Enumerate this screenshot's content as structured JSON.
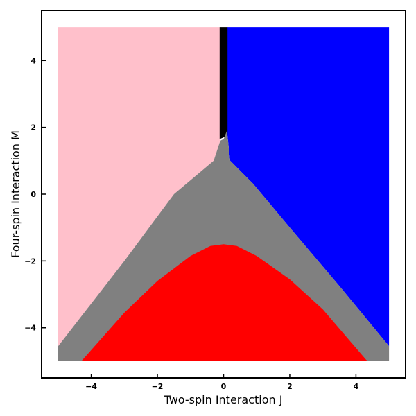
{
  "chart_data": {
    "type": "heatmap",
    "title": "",
    "xlabel": "Two-spin Interaction J",
    "ylabel": "Four-spin Interaction M",
    "xlim": [
      -5.5,
      5.5
    ],
    "ylim": [
      -5.5,
      5.5
    ],
    "data_extent": {
      "x": [
        -5,
        5
      ],
      "y": [
        -5,
        5
      ]
    },
    "x_ticks": [
      -4,
      -2,
      0,
      2,
      4
    ],
    "y_ticks": [
      -4,
      -2,
      0,
      2,
      4
    ],
    "tick_labels": {
      "x": [
        "−4",
        "−2",
        "0",
        "2",
        "4"
      ],
      "y": [
        "−4",
        "−2",
        "0",
        "2",
        "4"
      ]
    },
    "grid": false,
    "legend": "none",
    "regions": [
      {
        "color": "#ffc0cb",
        "points": [
          [
            -5,
            5
          ],
          [
            -0.1,
            5
          ],
          [
            -0.1,
            1.6
          ],
          [
            -0.3,
            1.0
          ],
          [
            -1.5,
            0.0
          ],
          [
            -3.0,
            -2.0
          ],
          [
            -5,
            -4.55
          ]
        ]
      },
      {
        "color": "#0000ff",
        "points": [
          [
            0.1,
            5
          ],
          [
            5,
            5
          ],
          [
            5,
            -4.55
          ],
          [
            3.5,
            -2.75
          ],
          [
            2.0,
            -1.0
          ],
          [
            0.9,
            0.3
          ],
          [
            0.2,
            1.0
          ],
          [
            0.1,
            1.9
          ]
        ]
      },
      {
        "color": "#000000",
        "points": [
          [
            -0.12,
            5
          ],
          [
            0.12,
            5
          ],
          [
            0.12,
            1.75
          ],
          [
            -0.12,
            1.65
          ]
        ]
      },
      {
        "color": "#808080",
        "points": [
          [
            -0.1,
            1.6
          ],
          [
            0.0,
            1.65
          ],
          [
            0.1,
            1.9
          ],
          [
            0.2,
            1.0
          ],
          [
            0.9,
            0.3
          ],
          [
            2.0,
            -1.0
          ],
          [
            3.5,
            -2.75
          ],
          [
            5,
            -4.55
          ],
          [
            5,
            -5
          ],
          [
            -5,
            -5
          ],
          [
            -5,
            -4.55
          ],
          [
            -3.0,
            -2.0
          ],
          [
            -1.5,
            0.0
          ],
          [
            -0.3,
            1.0
          ]
        ]
      },
      {
        "color": "#ff0000",
        "points": [
          [
            -4.3,
            -5
          ],
          [
            -3.0,
            -3.55
          ],
          [
            -2.0,
            -2.6
          ],
          [
            -1.0,
            -1.85
          ],
          [
            -0.4,
            -1.55
          ],
          [
            0.0,
            -1.5
          ],
          [
            0.4,
            -1.55
          ],
          [
            1.0,
            -1.85
          ],
          [
            2.0,
            -2.55
          ],
          [
            3.0,
            -3.45
          ],
          [
            4.3,
            -4.95
          ],
          [
            4.35,
            -5
          ]
        ]
      }
    ]
  }
}
